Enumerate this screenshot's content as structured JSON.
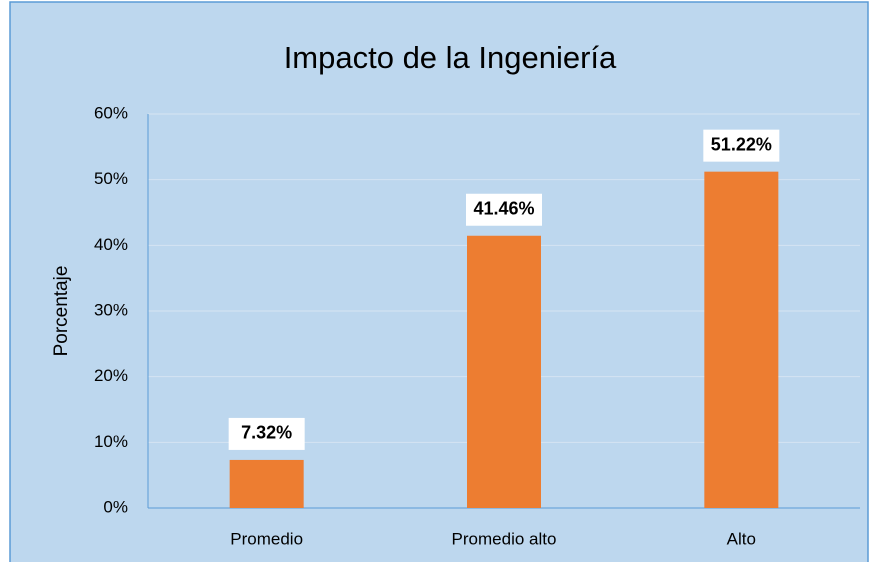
{
  "chart_data": {
    "type": "bar",
    "title": "Impacto de la Ingeniería",
    "y_label": "Porcentaje",
    "categories": [
      "Promedio",
      "Promedio alto",
      "Alto"
    ],
    "values": [
      7.32,
      41.46,
      51.22
    ],
    "value_labels": [
      "7.32%",
      "41.46%",
      "51.22%"
    ],
    "color": "#ed7d31",
    "ylim": [
      0,
      60
    ],
    "yticks": [
      {
        "value": 0,
        "label": "0%"
      },
      {
        "value": 10,
        "label": "10%"
      },
      {
        "value": 20,
        "label": "20%"
      },
      {
        "value": 30,
        "label": "30%"
      },
      {
        "value": 40,
        "label": "40%"
      },
      {
        "value": 50,
        "label": "50%"
      },
      {
        "value": 60,
        "label": "60%"
      }
    ],
    "grid": true
  }
}
